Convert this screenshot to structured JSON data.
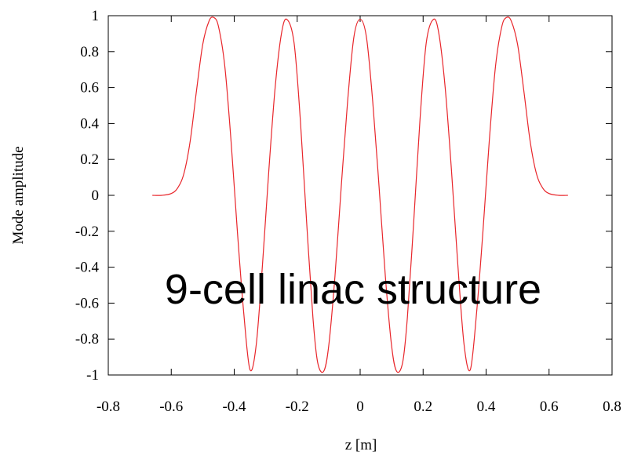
{
  "chart_data": {
    "type": "line",
    "xlabel": "z [m]",
    "ylabel": "Mode amplitude",
    "annotation": "9-cell linac structure",
    "xlim": [
      -0.8,
      0.8
    ],
    "ylim": [
      -1,
      1
    ],
    "x_ticks": [
      "-0.8",
      "-0.6",
      "-0.4",
      "-0.2",
      "0",
      "0.2",
      "0.4",
      "0.6",
      "0.8"
    ],
    "y_ticks": [
      "1",
      "0.8",
      "0.6",
      "0.4",
      "0.2",
      "0",
      "-0.2",
      "-0.4",
      "-0.6",
      "-0.8",
      "-1"
    ],
    "grid": false,
    "series": [
      {
        "color": "#e8262b",
        "x": [
          -0.66,
          -0.63,
          -0.6,
          -0.58,
          -0.56,
          -0.54,
          -0.52,
          -0.5,
          -0.48,
          -0.465,
          -0.45,
          -0.43,
          -0.41,
          -0.39,
          -0.37,
          -0.35,
          -0.33,
          -0.31,
          -0.29,
          -0.27,
          -0.25,
          -0.233,
          -0.21,
          -0.19,
          -0.17,
          -0.15,
          -0.135,
          -0.116,
          -0.1,
          -0.08,
          -0.06,
          -0.04,
          -0.02,
          0,
          0.02,
          0.04,
          0.06,
          0.08,
          0.1,
          0.116,
          0.135,
          0.15,
          0.17,
          0.19,
          0.21,
          0.233,
          0.25,
          0.27,
          0.29,
          0.31,
          0.33,
          0.35,
          0.37,
          0.39,
          0.41,
          0.43,
          0.45,
          0.465,
          0.48,
          0.5,
          0.52,
          0.54,
          0.56,
          0.58,
          0.6,
          0.63,
          0.66
        ],
        "y": [
          0.0,
          0.0,
          0.01,
          0.04,
          0.12,
          0.3,
          0.58,
          0.84,
          0.97,
          0.99,
          0.94,
          0.72,
          0.3,
          -0.2,
          -0.65,
          -0.97,
          -0.83,
          -0.38,
          0.14,
          0.6,
          0.9,
          0.98,
          0.85,
          0.42,
          -0.15,
          -0.68,
          -0.93,
          -0.98,
          -0.84,
          -0.45,
          0.05,
          0.52,
          0.88,
          0.98,
          0.88,
          0.52,
          0.05,
          -0.45,
          -0.84,
          -0.98,
          -0.93,
          -0.68,
          -0.15,
          0.42,
          0.85,
          0.98,
          0.9,
          0.6,
          0.14,
          -0.38,
          -0.83,
          -0.97,
          -0.65,
          -0.2,
          0.3,
          0.72,
          0.94,
          0.99,
          0.97,
          0.84,
          0.58,
          0.3,
          0.12,
          0.04,
          0.01,
          0.0,
          0.0
        ]
      }
    ]
  }
}
